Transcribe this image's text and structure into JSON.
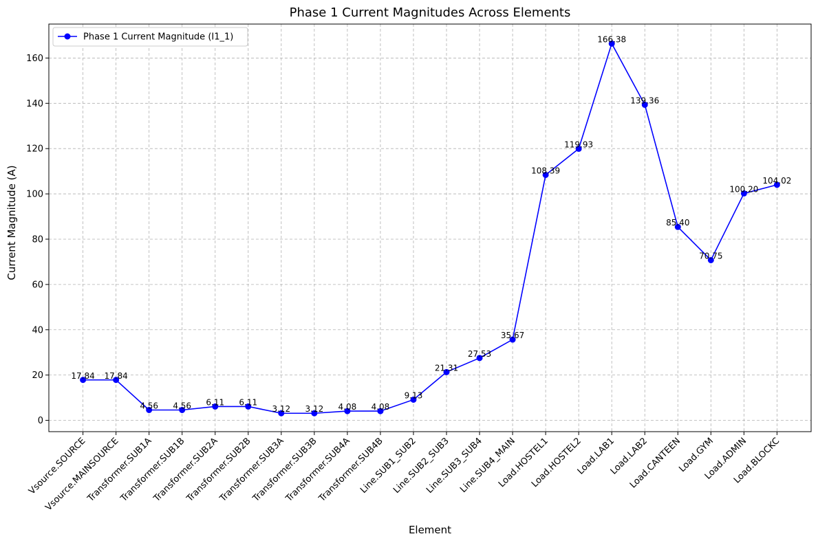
{
  "chart_data": {
    "type": "line",
    "title": "Phase 1 Current Magnitudes Across Elements",
    "xlabel": "Element",
    "ylabel": "Current Magnitude (A)",
    "ylim": [
      -5,
      175
    ],
    "yticks": [
      0,
      20,
      40,
      60,
      80,
      100,
      120,
      140,
      160
    ],
    "grid": true,
    "legend_position": "top-left",
    "categories": [
      "Vsource.SOURCE",
      "Vsource.MAINSOURCE",
      "Transformer.SUB1A",
      "Transformer.SUB1B",
      "Transformer.SUB2A",
      "Transformer.SUB2B",
      "Transformer.SUB3A",
      "Transformer.SUB3B",
      "Transformer.SUB4A",
      "Transformer.SUB4B",
      "Line.SUB1_SUB2",
      "Line.SUB2_SUB3",
      "Line.SUB3_SUB4",
      "Line.SUB4_MAIN",
      "Load.HOSTEL1",
      "Load.HOSTEL2",
      "Load.LAB1",
      "Load.LAB2",
      "Load.CANTEEN",
      "Load.GYM",
      "Load.ADMIN",
      "Load.BLOCKC"
    ],
    "series": [
      {
        "name": "Phase 1 Current Magnitude (I1_1)",
        "color": "#0000ff",
        "values": [
          17.84,
          17.84,
          4.56,
          4.56,
          6.11,
          6.11,
          3.12,
          3.12,
          4.08,
          4.08,
          9.13,
          21.31,
          27.53,
          35.67,
          108.39,
          119.93,
          166.38,
          139.36,
          85.4,
          70.75,
          100.2,
          104.02
        ],
        "labels": [
          "17.84",
          "17.84",
          "4.56",
          "4.56",
          "6.11",
          "6.11",
          "3.12",
          "3.12",
          "4.08",
          "4.08",
          "9.13",
          "21.31",
          "27.53",
          "35.67",
          "108.39",
          "119.93",
          "166.38",
          "139.36",
          "85.40",
          "70.75",
          "100.20",
          "104.02"
        ]
      }
    ]
  }
}
